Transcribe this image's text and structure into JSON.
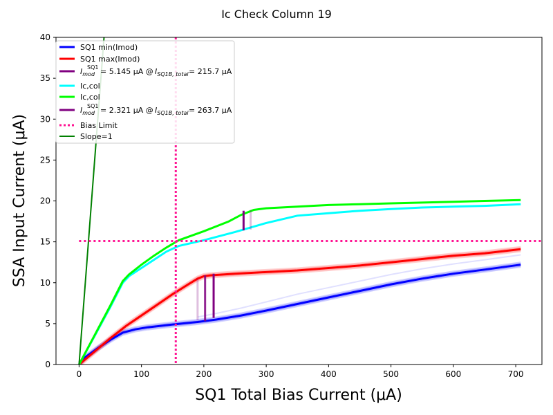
{
  "chart_data": {
    "type": "line",
    "title": "Ic Check Column 19",
    "xlabel": "SQ1 Total Bias Current (μA)",
    "ylabel": "SSA Input Current (μA)",
    "xlim": [
      -37,
      742
    ],
    "ylim": [
      0,
      40
    ],
    "xticks": [
      0,
      100,
      200,
      300,
      400,
      500,
      600,
      700
    ],
    "yticks": [
      0,
      5,
      10,
      15,
      20,
      25,
      30,
      35,
      40
    ],
    "legend_position": "upper left",
    "series": [
      {
        "name": "SQ1 min(Imod)",
        "color": "#0000ff",
        "x": [
          0,
          10,
          30,
          50,
          70,
          90,
          110,
          150,
          190,
          220,
          260,
          300,
          350,
          400,
          450,
          500,
          550,
          600,
          650,
          708
        ],
        "y": [
          0,
          0.9,
          2.0,
          3.0,
          3.9,
          4.3,
          4.55,
          4.9,
          5.2,
          5.5,
          6.0,
          6.6,
          7.4,
          8.2,
          9.0,
          9.8,
          10.5,
          11.1,
          11.6,
          12.2
        ]
      },
      {
        "name": "SQ1 max(Imod)",
        "color": "#ff0000",
        "x": [
          0,
          25,
          50,
          75,
          100,
          125,
          150,
          175,
          190,
          200,
          210,
          250,
          300,
          350,
          400,
          450,
          500,
          550,
          600,
          650,
          708
        ],
        "y": [
          0,
          1.6,
          3.2,
          4.7,
          6.0,
          7.3,
          8.6,
          9.8,
          10.5,
          10.8,
          10.9,
          11.1,
          11.3,
          11.5,
          11.8,
          12.1,
          12.5,
          12.9,
          13.3,
          13.6,
          14.1
        ]
      },
      {
        "name": "Ic,col",
        "color": "#00ffff",
        "x": [
          0,
          25,
          50,
          70,
          80,
          100,
          120,
          140,
          160,
          200,
          250,
          300,
          350,
          400,
          450,
          500,
          550,
          600,
          650,
          708
        ],
        "y": [
          0,
          3.5,
          7.0,
          10.0,
          10.8,
          11.8,
          12.8,
          13.8,
          14.5,
          15.2,
          16.2,
          17.3,
          18.2,
          18.5,
          18.8,
          19.0,
          19.2,
          19.3,
          19.4,
          19.6
        ]
      },
      {
        "name": "Ic,col",
        "color": "#00ff00",
        "x": [
          0,
          25,
          50,
          70,
          80,
          100,
          120,
          140,
          160,
          200,
          240,
          260,
          280,
          300,
          350,
          400,
          450,
          500,
          550,
          600,
          650,
          708
        ],
        "y": [
          0,
          3.6,
          7.2,
          10.2,
          11.0,
          12.2,
          13.3,
          14.3,
          15.2,
          16.3,
          17.5,
          18.3,
          18.9,
          19.1,
          19.3,
          19.5,
          19.6,
          19.7,
          19.8,
          19.9,
          20.0,
          20.1
        ]
      }
    ],
    "imod_markers": [
      {
        "label": "I_mod^SQ1 = 5.145 μA @ I_SQ1B,total = 215.7 μA",
        "color": "#800080",
        "segments": [
          {
            "x": 215.7,
            "y": [
              5.7,
              11.1
            ]
          },
          {
            "x": 202,
            "y": [
              5.3,
              10.9
            ]
          }
        ],
        "faded": [
          {
            "x": 190,
            "y": [
              5.4,
              10.5
            ]
          }
        ]
      },
      {
        "label": "I_mod^SQ1 = 2.321 μA @ I_SQ1B,total = 263.7 μA",
        "color": "#800080",
        "segments": [
          {
            "x": 263.7,
            "y": [
              16.4,
              18.8
            ]
          }
        ],
        "faded": [
          {
            "x": 275,
            "y": [
              16.5,
              18.9
            ]
          }
        ]
      }
    ],
    "bias_limit": {
      "name": "Bias Limit",
      "color": "#ff1493",
      "x": 155,
      "y": 15.1
    },
    "slope_line": {
      "name": "Slope=1",
      "color": "#008000",
      "x": [
        0,
        40
      ],
      "y": [
        0,
        40
      ]
    },
    "legend": {
      "line1": "SQ1 min(Imod)",
      "line2": "SQ1 max(Imod)",
      "line3_val": "= 5.145 μA @",
      "line3_val2": "= 215.7 μA",
      "line4": "Ic,col",
      "line5": "Ic,col",
      "line6_val": "= 2.321 μA @",
      "line6_val2": "= 263.7 μA",
      "line7": "Bias Limit",
      "line8": "Slope=1"
    }
  }
}
